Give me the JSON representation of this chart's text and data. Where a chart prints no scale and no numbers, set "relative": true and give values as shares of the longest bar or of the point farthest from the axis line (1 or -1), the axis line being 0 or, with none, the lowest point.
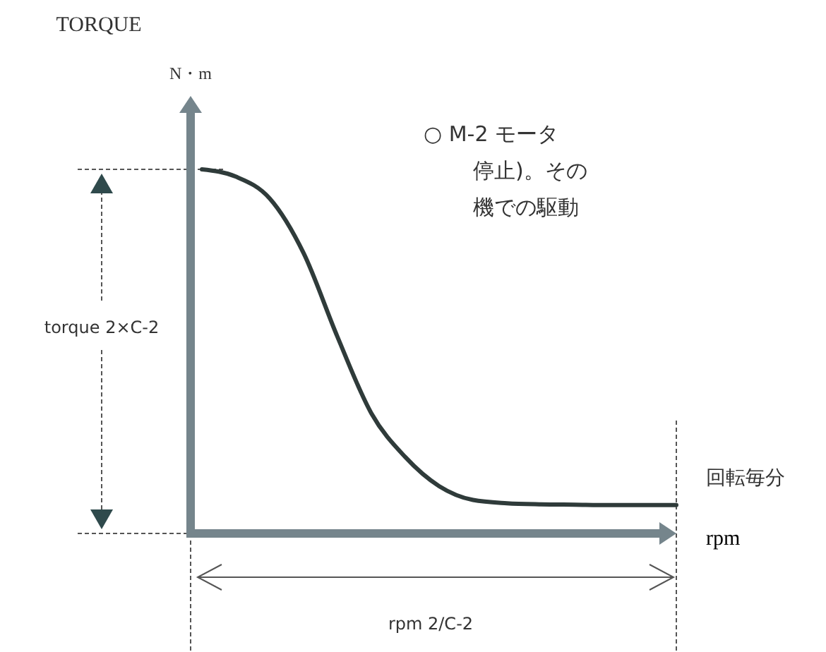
{
  "chart_data": {
    "type": "line",
    "relative": true,
    "xlabel": "rpm",
    "annotations": [
      "TORQUE",
      "N・m",
      "回転毎分",
      "torque 2×C-2",
      "rpm 2/C-2",
      "○  M-2 モータ",
      "停止)。その",
      "機での駆動"
    ],
    "categories": [
      null,
      null,
      null,
      null,
      null,
      null,
      null,
      null,
      null,
      null,
      null,
      null,
      null,
      null,
      null
    ],
    "values": [
      1.0,
      0.98,
      0.92,
      0.77,
      0.54,
      0.33,
      0.21,
      0.13,
      0.092,
      0.083,
      0.08,
      0.079,
      0.078,
      0.078,
      0.078
    ],
    "color": "#2f3b3a"
  }
}
